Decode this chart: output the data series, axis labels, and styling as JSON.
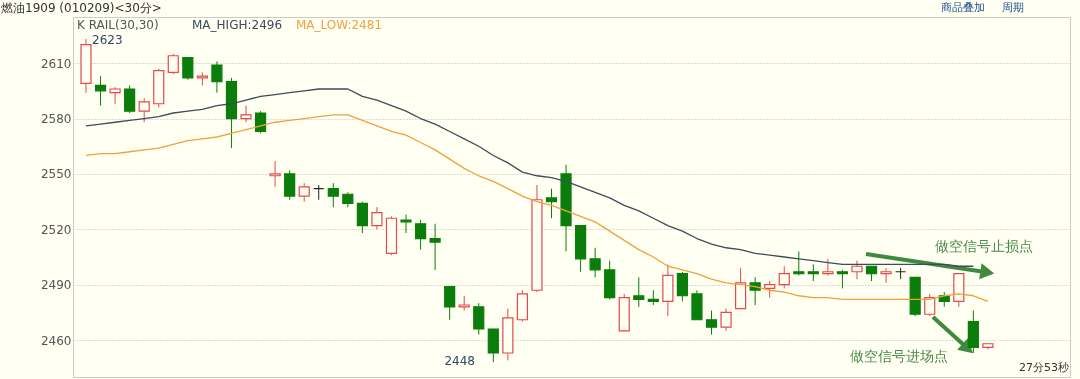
{
  "chart_data": {
    "type": "candlestick",
    "title": "燃油1909 (010209)<30分>",
    "categories": [
      null,
      null,
      null,
      null,
      null,
      null,
      null,
      null,
      null,
      null,
      null,
      null,
      null,
      null,
      null,
      null,
      null,
      null,
      null,
      null,
      null,
      null,
      null,
      null,
      null,
      null,
      null,
      null,
      null,
      null,
      null,
      null,
      null,
      null,
      null,
      null,
      null,
      null,
      null,
      null,
      null,
      null,
      null,
      null,
      null,
      null,
      null,
      null,
      null,
      null,
      null,
      null,
      null,
      null,
      null,
      null,
      null,
      null,
      null,
      null,
      null,
      null,
      null
    ],
    "ohlc": [
      [
        2599,
        2623,
        2594,
        2620
      ],
      [
        2598,
        2603,
        2587,
        2595
      ],
      [
        2594,
        2597,
        2588,
        2596
      ],
      [
        2596,
        2598,
        2583,
        2584
      ],
      [
        2584,
        2591,
        2578,
        2589
      ],
      [
        2588,
        2607,
        2586,
        2606
      ],
      [
        2605,
        2615,
        2604,
        2614
      ],
      [
        2613,
        2613,
        2601,
        2602
      ],
      [
        2602,
        2605,
        2598,
        2603
      ],
      [
        2609,
        2611,
        2594,
        2600
      ],
      [
        2600,
        2602,
        2564,
        2580
      ],
      [
        2580,
        2587,
        2578,
        2582
      ],
      [
        2583,
        2584,
        2572,
        2573
      ],
      [
        2549,
        2557,
        2543,
        2550
      ],
      [
        2550,
        2552,
        2536,
        2538
      ],
      [
        2538,
        2545,
        2535,
        2543
      ],
      [
        2542,
        2544,
        2536,
        2542
      ],
      [
        2542,
        2545,
        2532,
        2538
      ],
      [
        2539,
        2540,
        2532,
        2534
      ],
      [
        2534,
        2535,
        2518,
        2522
      ],
      [
        2522,
        2532,
        2520,
        2529
      ],
      [
        2507,
        2527,
        2506,
        2526
      ],
      [
        2525,
        2528,
        2518,
        2524
      ],
      [
        2523,
        2525,
        2509,
        2515
      ],
      [
        2515,
        2523,
        2498,
        2513
      ],
      [
        2489,
        2489,
        2471,
        2478
      ],
      [
        2478,
        2484,
        2476,
        2479
      ],
      [
        2478,
        2480,
        2463,
        2466
      ],
      [
        2466,
        2466,
        2448,
        2453
      ],
      [
        2453,
        2477,
        2449,
        2472
      ],
      [
        2471,
        2487,
        2470,
        2485
      ],
      [
        2487,
        2544,
        2486,
        2536
      ],
      [
        2537,
        2542,
        2526,
        2535
      ],
      [
        2550,
        2555,
        2508,
        2522
      ],
      [
        2522,
        2522,
        2497,
        2504
      ],
      [
        2504,
        2510,
        2494,
        2498
      ],
      [
        2498,
        2503,
        2482,
        2483
      ],
      [
        2465,
        2485,
        2465,
        2483
      ],
      [
        2484,
        2494,
        2478,
        2482
      ],
      [
        2482,
        2487,
        2479,
        2481
      ],
      [
        2481,
        2501,
        2473,
        2495
      ],
      [
        2496,
        2497,
        2481,
        2484
      ],
      [
        2485,
        2487,
        2471,
        2471
      ],
      [
        2471,
        2476,
        2463,
        2467
      ],
      [
        2467,
        2477,
        2465,
        2475
      ],
      [
        2477,
        2499,
        2477,
        2491
      ],
      [
        2491,
        2494,
        2479,
        2487
      ],
      [
        2488,
        2492,
        2483,
        2490
      ],
      [
        2490,
        2500,
        2488,
        2496
      ],
      [
        2497,
        2508,
        2495,
        2496
      ],
      [
        2497,
        2501,
        2492,
        2496
      ],
      [
        2496,
        2504,
        2495,
        2497
      ],
      [
        2497,
        2498,
        2488,
        2496
      ],
      [
        2497,
        2503,
        2493,
        2500
      ],
      [
        2500,
        2500,
        2492,
        2496
      ],
      [
        2496,
        2499,
        2491,
        2497
      ],
      [
        2497,
        2499,
        2493,
        2497
      ],
      [
        2494,
        2494,
        2473,
        2474
      ],
      [
        2474,
        2485,
        2473,
        2483
      ],
      [
        2484,
        2486,
        2478,
        2481
      ],
      [
        2481,
        2496,
        2478,
        2496
      ],
      [
        2470,
        2476,
        2453,
        2456
      ],
      [
        2456,
        2458,
        2455,
        2458
      ]
    ],
    "colors": [
      "#e5484d",
      "#0b7d0b",
      "#e5484d",
      "#0b7d0b",
      "#e5484d",
      "#e5484d",
      "#e5484d",
      "#0b7d0b",
      "#e5484d",
      "#0b7d0b",
      "#0b7d0b",
      "#e5484d",
      "#0b7d0b",
      "#e5484d",
      "#0b7d0b",
      "#e5484d",
      "#222222",
      "#0b7d0b",
      "#0b7d0b",
      "#0b7d0b",
      "#e5484d",
      "#e5484d",
      "#0b7d0b",
      "#0b7d0b",
      "#0b7d0b",
      "#0b7d0b",
      "#e5484d",
      "#0b7d0b",
      "#0b7d0b",
      "#e5484d",
      "#e5484d",
      "#e5484d",
      "#0b7d0b",
      "#0b7d0b",
      "#0b7d0b",
      "#0b7d0b",
      "#0b7d0b",
      "#e5484d",
      "#0b7d0b",
      "#0b7d0b",
      "#e5484d",
      "#0b7d0b",
      "#0b7d0b",
      "#0b7d0b",
      "#e5484d",
      "#e5484d",
      "#0b7d0b",
      "#e5484d",
      "#e5484d",
      "#0b7d0b",
      "#0b7d0b",
      "#e5484d",
      "#0b7d0b",
      "#e5484d",
      "#0b7d0b",
      "#e5484d",
      "#222222",
      "#0b7d0b",
      "#e5484d",
      "#0b7d0b",
      "#e5484d",
      "#0b7d0b",
      "#e5484d"
    ],
    "series": [
      {
        "name": "MA_HIGH:2496",
        "type": "line",
        "color": "#3d4b5c",
        "values": [
          2576,
          2577,
          2578,
          2579,
          2580,
          2581,
          2583,
          2584,
          2585,
          2587,
          2588,
          2590,
          2592,
          2593,
          2594,
          2595,
          2596,
          2596,
          2596,
          2592,
          2590,
          2587,
          2584,
          2580,
          2577,
          2573,
          2569,
          2565,
          2560,
          2556,
          2551,
          2549,
          2548,
          2546,
          2543,
          2540,
          2537,
          2533,
          2530,
          2526,
          2522,
          2519,
          2515,
          2512,
          2510,
          2509,
          2507,
          2506,
          2505,
          2504,
          2503,
          2502,
          2501,
          2501,
          2501,
          2501,
          2501,
          2501,
          2501,
          2501,
          2500,
          2500,
          null
        ]
      },
      {
        "name": "MA_LOW:2481",
        "type": "line",
        "color": "#f0a040",
        "values": [
          2560,
          2561,
          2561,
          2562,
          2563,
          2564,
          2566,
          2568,
          2569,
          2570,
          2572,
          2574,
          2576,
          2578,
          2579,
          2580,
          2581,
          2582,
          2582,
          2579,
          2576,
          2573,
          2571,
          2567,
          2563,
          2558,
          2553,
          2549,
          2546,
          2542,
          2538,
          2535,
          2533,
          2530,
          2527,
          2524,
          2519,
          2514,
          2509,
          2505,
          2500,
          2498,
          2496,
          2493,
          2491,
          2490,
          2489,
          2487,
          2486,
          2484,
          2483,
          2483,
          2482,
          2482,
          2482,
          2482,
          2482,
          2482,
          2482,
          2484,
          2485,
          2484,
          2481
        ]
      }
    ],
    "ylim": [
      2440,
      2635
    ],
    "yticks": [
      2460,
      2490,
      2520,
      2550,
      2580,
      2610
    ],
    "grid": "y",
    "tick_labels": "y",
    "legend": "top left",
    "legend_title": "K  RAIL(30,30)",
    "annotations": [
      "2623",
      "2448",
      "做空信号止损点",
      "做空信号进场点",
      "27分53秒",
      "商品叠加",
      "周期"
    ]
  }
}
